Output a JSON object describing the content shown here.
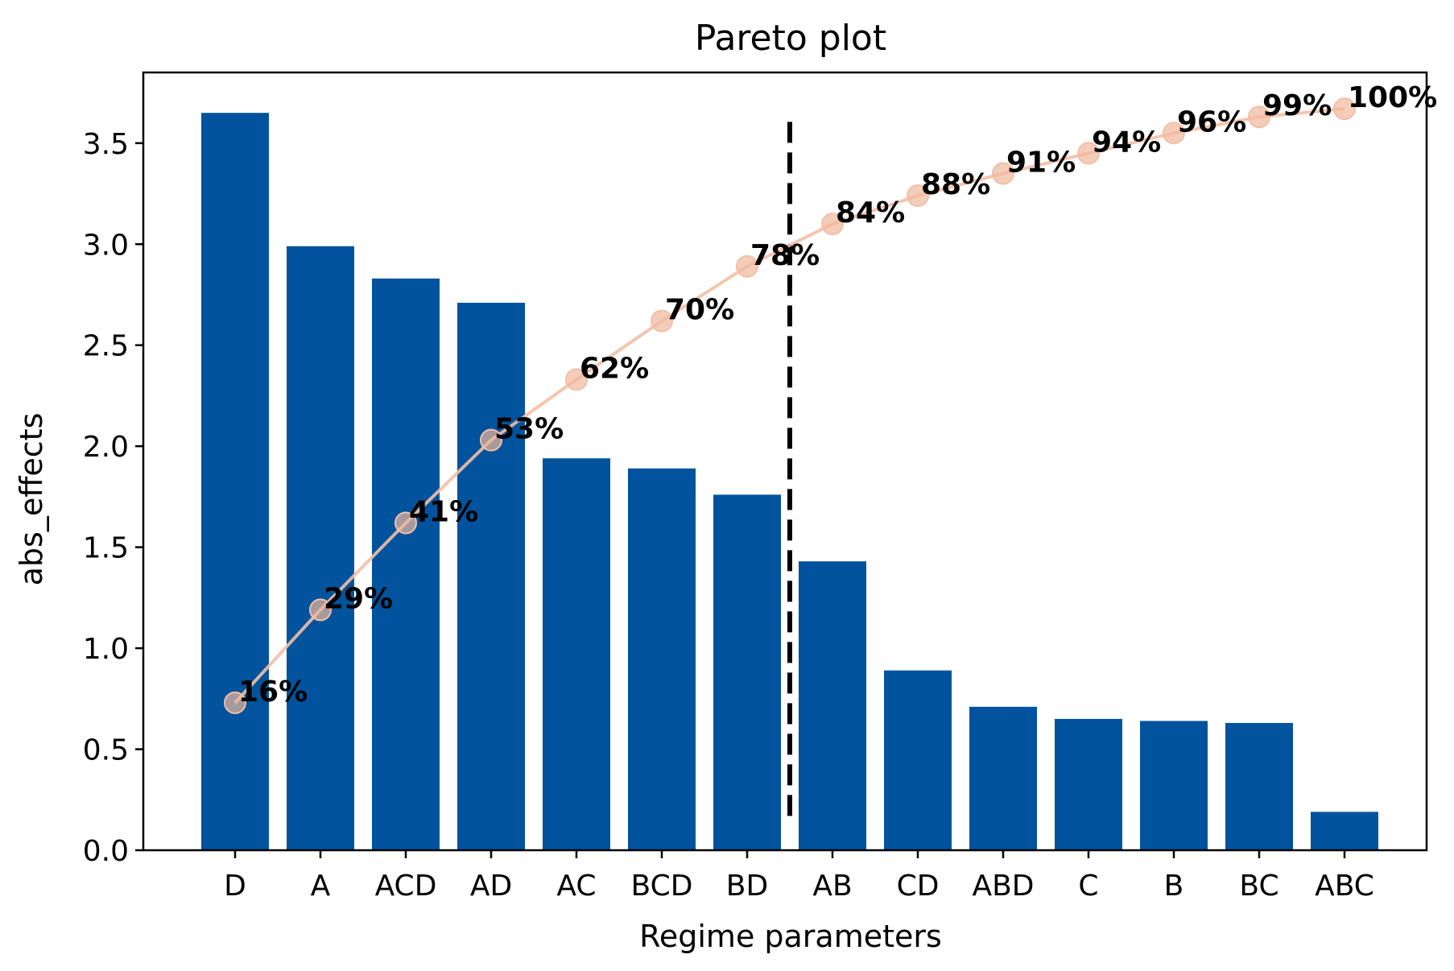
{
  "chart_data": {
    "type": "bar",
    "title": "Pareto plot",
    "xlabel": "Regime parameters",
    "ylabel": "abs_effects",
    "ylim": [
      0,
      3.85
    ],
    "yticks": [
      "0.0",
      "0.5",
      "1.0",
      "1.5",
      "2.0",
      "2.5",
      "3.0",
      "3.5"
    ],
    "categories": [
      "D",
      "A",
      "ACD",
      "AD",
      "AC",
      "BCD",
      "BD",
      "AB",
      "CD",
      "ABD",
      "C",
      "B",
      "BC",
      "ABC"
    ],
    "values": [
      3.65,
      2.99,
      2.83,
      2.71,
      1.94,
      1.89,
      1.76,
      1.43,
      0.89,
      0.71,
      0.65,
      0.64,
      0.63,
      0.19
    ],
    "cumulative_labels": [
      "16%",
      "29%",
      "41%",
      "53%",
      "62%",
      "70%",
      "78%",
      "84%",
      "88%",
      "91%",
      "94%",
      "96%",
      "99%",
      "100%"
    ],
    "cumulative_line_y": [
      0.73,
      1.19,
      1.62,
      2.03,
      2.33,
      2.62,
      2.89,
      3.1,
      3.24,
      3.35,
      3.45,
      3.55,
      3.63,
      3.67
    ],
    "cutoff_after_category": "BD",
    "cutoff_y_range": [
      0.17,
      3.63
    ],
    "colors": {
      "bar": "#01539d",
      "cumulative_line": "#f3bfa6",
      "cumulative_marker_fill": "#f0b89c",
      "cutoff_line": "#000000"
    }
  }
}
